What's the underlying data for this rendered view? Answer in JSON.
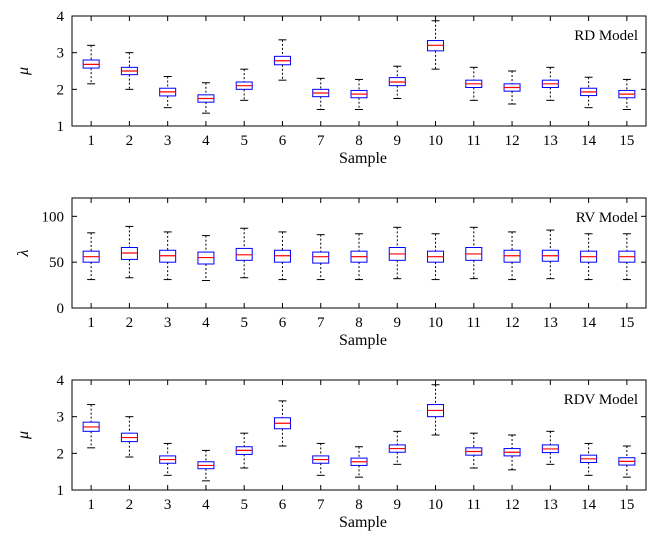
{
  "chart_data": [
    {
      "type": "box",
      "title": "RD Model",
      "xlabel": "Sample",
      "ylabel": "μ",
      "ylim": [
        1,
        4
      ],
      "yticks": [
        1,
        2,
        3,
        4
      ],
      "categories": [
        "1",
        "2",
        "3",
        "4",
        "5",
        "6",
        "7",
        "8",
        "9",
        "10",
        "11",
        "12",
        "13",
        "14",
        "15"
      ],
      "boxes": [
        {
          "min": 2.15,
          "q1": 2.58,
          "median": 2.68,
          "q3": 2.8,
          "max": 3.2
        },
        {
          "min": 2.0,
          "q1": 2.4,
          "median": 2.5,
          "q3": 2.6,
          "max": 3.0
        },
        {
          "min": 1.5,
          "q1": 1.82,
          "median": 1.93,
          "q3": 2.03,
          "max": 2.35
        },
        {
          "min": 1.35,
          "q1": 1.65,
          "median": 1.75,
          "q3": 1.85,
          "max": 2.18
        },
        {
          "min": 1.7,
          "q1": 2.0,
          "median": 2.1,
          "q3": 2.2,
          "max": 2.55
        },
        {
          "min": 2.25,
          "q1": 2.67,
          "median": 2.78,
          "q3": 2.9,
          "max": 3.35
        },
        {
          "min": 1.45,
          "q1": 1.8,
          "median": 1.9,
          "q3": 2.0,
          "max": 2.3
        },
        {
          "min": 1.45,
          "q1": 1.77,
          "median": 1.87,
          "q3": 1.97,
          "max": 2.27
        },
        {
          "min": 1.75,
          "q1": 2.1,
          "median": 2.2,
          "q3": 2.32,
          "max": 2.63
        },
        {
          "min": 2.55,
          "q1": 3.05,
          "median": 3.2,
          "q3": 3.33,
          "max": 3.87
        },
        {
          "min": 1.7,
          "q1": 2.05,
          "median": 2.15,
          "q3": 2.25,
          "max": 2.6
        },
        {
          "min": 1.6,
          "q1": 1.95,
          "median": 2.05,
          "q3": 2.15,
          "max": 2.5
        },
        {
          "min": 1.7,
          "q1": 2.05,
          "median": 2.15,
          "q3": 2.25,
          "max": 2.6
        },
        {
          "min": 1.5,
          "q1": 1.83,
          "median": 1.93,
          "q3": 2.03,
          "max": 2.33
        },
        {
          "min": 1.45,
          "q1": 1.77,
          "median": 1.87,
          "q3": 1.97,
          "max": 2.27
        }
      ],
      "grid": false
    },
    {
      "type": "box",
      "title": "RV Model",
      "xlabel": "Sample",
      "ylabel": "λ",
      "ylim": [
        0,
        120
      ],
      "yticks": [
        0,
        50,
        100
      ],
      "categories": [
        "1",
        "2",
        "3",
        "4",
        "5",
        "6",
        "7",
        "8",
        "9",
        "10",
        "11",
        "12",
        "13",
        "14",
        "15"
      ],
      "boxes": [
        {
          "min": 31,
          "q1": 50,
          "median": 56,
          "q3": 62,
          "max": 82
        },
        {
          "min": 33,
          "q1": 53,
          "median": 60,
          "q3": 66,
          "max": 89
        },
        {
          "min": 31,
          "q1": 50,
          "median": 57,
          "q3": 63,
          "max": 83
        },
        {
          "min": 30,
          "q1": 48,
          "median": 55,
          "q3": 61,
          "max": 79
        },
        {
          "min": 33,
          "q1": 52,
          "median": 58,
          "q3": 65,
          "max": 87
        },
        {
          "min": 31,
          "q1": 50,
          "median": 57,
          "q3": 63,
          "max": 83
        },
        {
          "min": 31,
          "q1": 49,
          "median": 56,
          "q3": 61,
          "max": 80
        },
        {
          "min": 31,
          "q1": 50,
          "median": 56,
          "q3": 62,
          "max": 81
        },
        {
          "min": 32,
          "q1": 52,
          "median": 59,
          "q3": 66,
          "max": 88
        },
        {
          "min": 31,
          "q1": 50,
          "median": 56,
          "q3": 62,
          "max": 81
        },
        {
          "min": 32,
          "q1": 52,
          "median": 59,
          "q3": 66,
          "max": 88
        },
        {
          "min": 31,
          "q1": 50,
          "median": 57,
          "q3": 63,
          "max": 83
        },
        {
          "min": 32,
          "q1": 51,
          "median": 57,
          "q3": 63,
          "max": 85
        },
        {
          "min": 31,
          "q1": 50,
          "median": 56,
          "q3": 62,
          "max": 81
        },
        {
          "min": 31,
          "q1": 50,
          "median": 56,
          "q3": 62,
          "max": 81
        }
      ],
      "grid": false
    },
    {
      "type": "box",
      "title": "RDV Model",
      "xlabel": "Sample",
      "ylabel": "μ",
      "ylim": [
        1,
        4
      ],
      "yticks": [
        1,
        2,
        3,
        4
      ],
      "categories": [
        "1",
        "2",
        "3",
        "4",
        "5",
        "6",
        "7",
        "8",
        "9",
        "10",
        "11",
        "12",
        "13",
        "14",
        "15"
      ],
      "boxes": [
        {
          "min": 2.15,
          "q1": 2.6,
          "median": 2.72,
          "q3": 2.85,
          "max": 3.33
        },
        {
          "min": 1.9,
          "q1": 2.32,
          "median": 2.43,
          "q3": 2.55,
          "max": 3.0
        },
        {
          "min": 1.4,
          "q1": 1.73,
          "median": 1.83,
          "q3": 1.93,
          "max": 2.27
        },
        {
          "min": 1.25,
          "q1": 1.58,
          "median": 1.67,
          "q3": 1.77,
          "max": 2.08
        },
        {
          "min": 1.6,
          "q1": 1.97,
          "median": 2.08,
          "q3": 2.18,
          "max": 2.55
        },
        {
          "min": 2.2,
          "q1": 2.67,
          "median": 2.82,
          "q3": 2.97,
          "max": 3.43
        },
        {
          "min": 1.4,
          "q1": 1.73,
          "median": 1.83,
          "q3": 1.93,
          "max": 2.27
        },
        {
          "min": 1.35,
          "q1": 1.67,
          "median": 1.77,
          "q3": 1.87,
          "max": 2.18
        },
        {
          "min": 1.7,
          "q1": 2.03,
          "median": 2.13,
          "q3": 2.23,
          "max": 2.6
        },
        {
          "min": 2.5,
          "q1": 3.0,
          "median": 3.17,
          "q3": 3.33,
          "max": 3.87
        },
        {
          "min": 1.6,
          "q1": 1.95,
          "median": 2.05,
          "q3": 2.15,
          "max": 2.55
        },
        {
          "min": 1.55,
          "q1": 1.93,
          "median": 2.03,
          "q3": 2.13,
          "max": 2.5
        },
        {
          "min": 1.7,
          "q1": 2.02,
          "median": 2.12,
          "q3": 2.23,
          "max": 2.6
        },
        {
          "min": 1.4,
          "q1": 1.75,
          "median": 1.85,
          "q3": 1.95,
          "max": 2.27
        },
        {
          "min": 1.35,
          "q1": 1.68,
          "median": 1.78,
          "q3": 1.88,
          "max": 2.2
        }
      ],
      "grid": false
    }
  ],
  "style": {
    "box_color": "#0000ff",
    "median_color": "#ff0000",
    "whisker_color": "#000000",
    "axis_color": "#000000"
  }
}
